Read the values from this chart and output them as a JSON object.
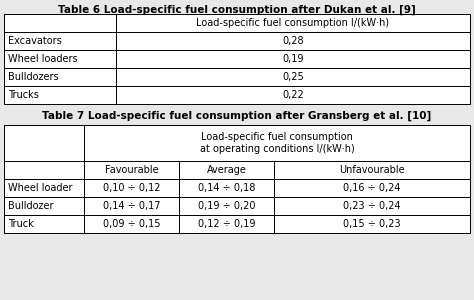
{
  "table6_title": "Table 6 Load-specific fuel consumption after Dukan et al. [9]",
  "table6_col_header": "Load-specific fuel consumption l/(kW·h)",
  "table6_rows": [
    [
      "Excavators",
      "0,28"
    ],
    [
      "Wheel loaders",
      "0,19"
    ],
    [
      "Bulldozers",
      "0,25"
    ],
    [
      "Trucks",
      "0,22"
    ]
  ],
  "table7_title": "Table 7 Load-specific fuel consumption after Gransberg et al. [10]",
  "table7_col_header_main": "Load-specific fuel consumption\nat operating conditions l/(kW·h)",
  "table7_col_headers": [
    "Favourable",
    "Average",
    "Unfavourable"
  ],
  "table7_rows": [
    [
      "Wheel loader",
      "0,10 ÷ 0,12",
      "0,14 ÷ 0,18",
      "0,16 ÷ 0,24"
    ],
    [
      "Bulldozer",
      "0,14 ÷ 0,17",
      "0,19 ÷ 0,20",
      "0,23 ÷ 0,24"
    ],
    [
      "Truck",
      "0,09 ÷ 0,15",
      "0,12 ÷ 0,19",
      "0,15 ÷ 0,23"
    ]
  ],
  "bg_color": "#e8e8e8",
  "table_bg": "#ffffff",
  "font_size": 7.0,
  "title_font_size": 7.5,
  "border_color": "#000000",
  "lw": 0.7
}
